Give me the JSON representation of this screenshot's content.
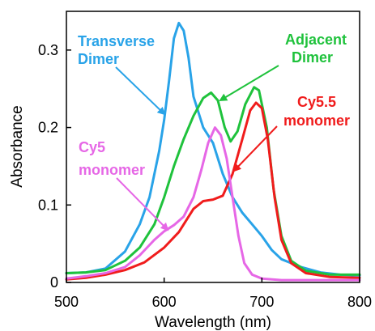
{
  "chart_data": {
    "type": "line",
    "title": "",
    "xlabel": "Wavelength (nm)",
    "ylabel": "Absorbance",
    "xlim": [
      500,
      800
    ],
    "ylim": [
      0,
      0.35
    ],
    "xticks": [
      500,
      600,
      700,
      800
    ],
    "xtick_labels": [
      "500",
      "600",
      "700",
      "800"
    ],
    "yticks": [
      0,
      0.1,
      0.2,
      0.3
    ],
    "ytick_labels": [
      "0",
      "0.1",
      "0.2",
      "0.3"
    ],
    "grid": false,
    "series": [
      {
        "name": "Transverse Dimer",
        "color": "#29a3e8",
        "points": [
          [
            500,
            0.012
          ],
          [
            520,
            0.013
          ],
          [
            540,
            0.018
          ],
          [
            560,
            0.04
          ],
          [
            575,
            0.075
          ],
          [
            585,
            0.11
          ],
          [
            595,
            0.17
          ],
          [
            600,
            0.21
          ],
          [
            605,
            0.26
          ],
          [
            610,
            0.315
          ],
          [
            615,
            0.335
          ],
          [
            620,
            0.325
          ],
          [
            625,
            0.29
          ],
          [
            630,
            0.24
          ],
          [
            640,
            0.2
          ],
          [
            650,
            0.18
          ],
          [
            660,
            0.14
          ],
          [
            670,
            0.11
          ],
          [
            680,
            0.09
          ],
          [
            690,
            0.075
          ],
          [
            700,
            0.06
          ],
          [
            710,
            0.042
          ],
          [
            720,
            0.03
          ],
          [
            740,
            0.02
          ],
          [
            760,
            0.013
          ],
          [
            780,
            0.01
          ],
          [
            800,
            0.009
          ]
        ]
      },
      {
        "name": "Adjacent Dimer",
        "color": "#1fc23c",
        "points": [
          [
            500,
            0.012
          ],
          [
            520,
            0.013
          ],
          [
            540,
            0.016
          ],
          [
            560,
            0.028
          ],
          [
            575,
            0.045
          ],
          [
            590,
            0.075
          ],
          [
            600,
            0.11
          ],
          [
            610,
            0.15
          ],
          [
            620,
            0.185
          ],
          [
            630,
            0.215
          ],
          [
            640,
            0.238
          ],
          [
            648,
            0.245
          ],
          [
            655,
            0.235
          ],
          [
            662,
            0.2
          ],
          [
            668,
            0.182
          ],
          [
            675,
            0.195
          ],
          [
            683,
            0.23
          ],
          [
            692,
            0.252
          ],
          [
            697,
            0.248
          ],
          [
            705,
            0.2
          ],
          [
            712,
            0.12
          ],
          [
            720,
            0.06
          ],
          [
            730,
            0.028
          ],
          [
            745,
            0.015
          ],
          [
            770,
            0.01
          ],
          [
            800,
            0.01
          ]
        ]
      },
      {
        "name": "Cy5.5 monomer",
        "color": "#f01c1c",
        "points": [
          [
            500,
            0.004
          ],
          [
            520,
            0.006
          ],
          [
            540,
            0.01
          ],
          [
            560,
            0.016
          ],
          [
            580,
            0.026
          ],
          [
            600,
            0.045
          ],
          [
            615,
            0.065
          ],
          [
            630,
            0.095
          ],
          [
            640,
            0.105
          ],
          [
            650,
            0.107
          ],
          [
            660,
            0.112
          ],
          [
            670,
            0.14
          ],
          [
            680,
            0.185
          ],
          [
            688,
            0.222
          ],
          [
            694,
            0.232
          ],
          [
            700,
            0.225
          ],
          [
            706,
            0.185
          ],
          [
            713,
            0.11
          ],
          [
            720,
            0.055
          ],
          [
            730,
            0.025
          ],
          [
            745,
            0.012
          ],
          [
            770,
            0.007
          ],
          [
            800,
            0.006
          ]
        ]
      },
      {
        "name": "Cy5 monomer",
        "color": "#e667e6",
        "points": [
          [
            500,
            0.005
          ],
          [
            520,
            0.008
          ],
          [
            540,
            0.012
          ],
          [
            560,
            0.02
          ],
          [
            575,
            0.035
          ],
          [
            590,
            0.055
          ],
          [
            600,
            0.066
          ],
          [
            610,
            0.074
          ],
          [
            620,
            0.085
          ],
          [
            630,
            0.11
          ],
          [
            638,
            0.145
          ],
          [
            645,
            0.18
          ],
          [
            652,
            0.2
          ],
          [
            658,
            0.19
          ],
          [
            664,
            0.16
          ],
          [
            670,
            0.11
          ],
          [
            676,
            0.06
          ],
          [
            682,
            0.025
          ],
          [
            690,
            0.01
          ],
          [
            700,
            0.005
          ],
          [
            720,
            0.003
          ],
          [
            760,
            0.003
          ],
          [
            800,
            0.003
          ]
        ]
      }
    ],
    "annotations": [
      {
        "lines": [
          "Transverse",
          "Dimer"
        ],
        "color": "#29a3e8"
      },
      {
        "lines": [
          "Adjacent",
          "Dimer"
        ],
        "color": "#1fc23c"
      },
      {
        "lines": [
          "Cy5.5",
          "monomer"
        ],
        "color": "#f01c1c"
      },
      {
        "lines": [
          "Cy5",
          "monomer"
        ],
        "color": "#e667e6"
      }
    ]
  }
}
